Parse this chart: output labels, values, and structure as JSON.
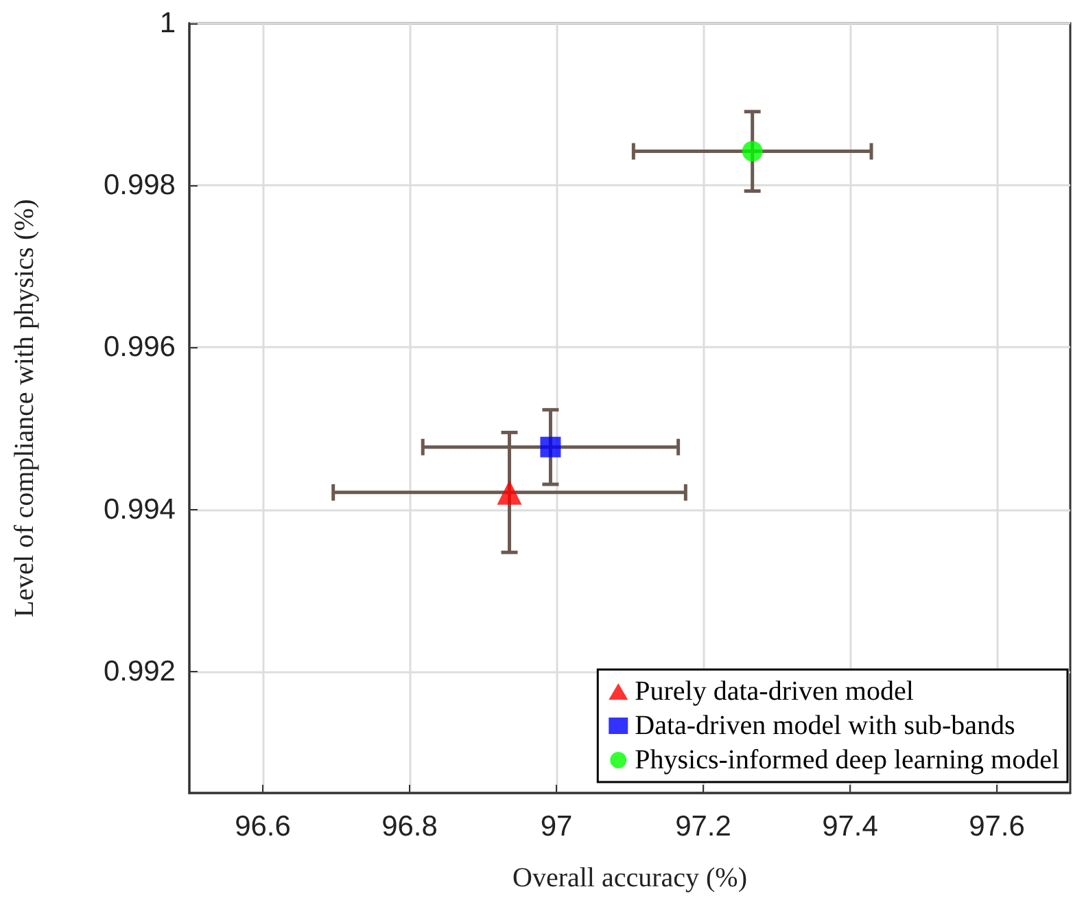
{
  "chart_data": {
    "type": "scatter",
    "xlabel": "Overall accuracy (%)",
    "ylabel": "Level of compliance with physics (%)",
    "xlim": [
      96.5,
      97.7
    ],
    "xticks": [
      96.6,
      96.8,
      97,
      97.2,
      97.4,
      97.6
    ],
    "ylim": [
      0.9905,
      1
    ],
    "yticks": [
      0.992,
      0.994,
      0.996,
      0.998,
      1
    ],
    "grid": true,
    "legend": "bottom right",
    "series": [
      {
        "name": "Purely data-driven model",
        "color": "#ff0000",
        "marker": "triangle",
        "x": [
          96.936
        ],
        "values": [
          0.99421
        ],
        "xerrors": [
          0.24
        ],
        "errors": [
          0.00074
        ]
      },
      {
        "name": "Data-driven model with sub-bands",
        "color": "#0000ff",
        "marker": "square",
        "x": [
          96.992
        ],
        "values": [
          0.99477
        ],
        "xerrors": [
          0.174
        ],
        "errors": [
          0.00046
        ]
      },
      {
        "name": "Physics-informed deep learning model",
        "color": "#00ff00",
        "marker": "circle",
        "x": [
          97.267
        ],
        "values": [
          0.99842
        ],
        "xerrors": [
          0.162
        ],
        "errors": [
          0.00049
        ]
      }
    ]
  }
}
